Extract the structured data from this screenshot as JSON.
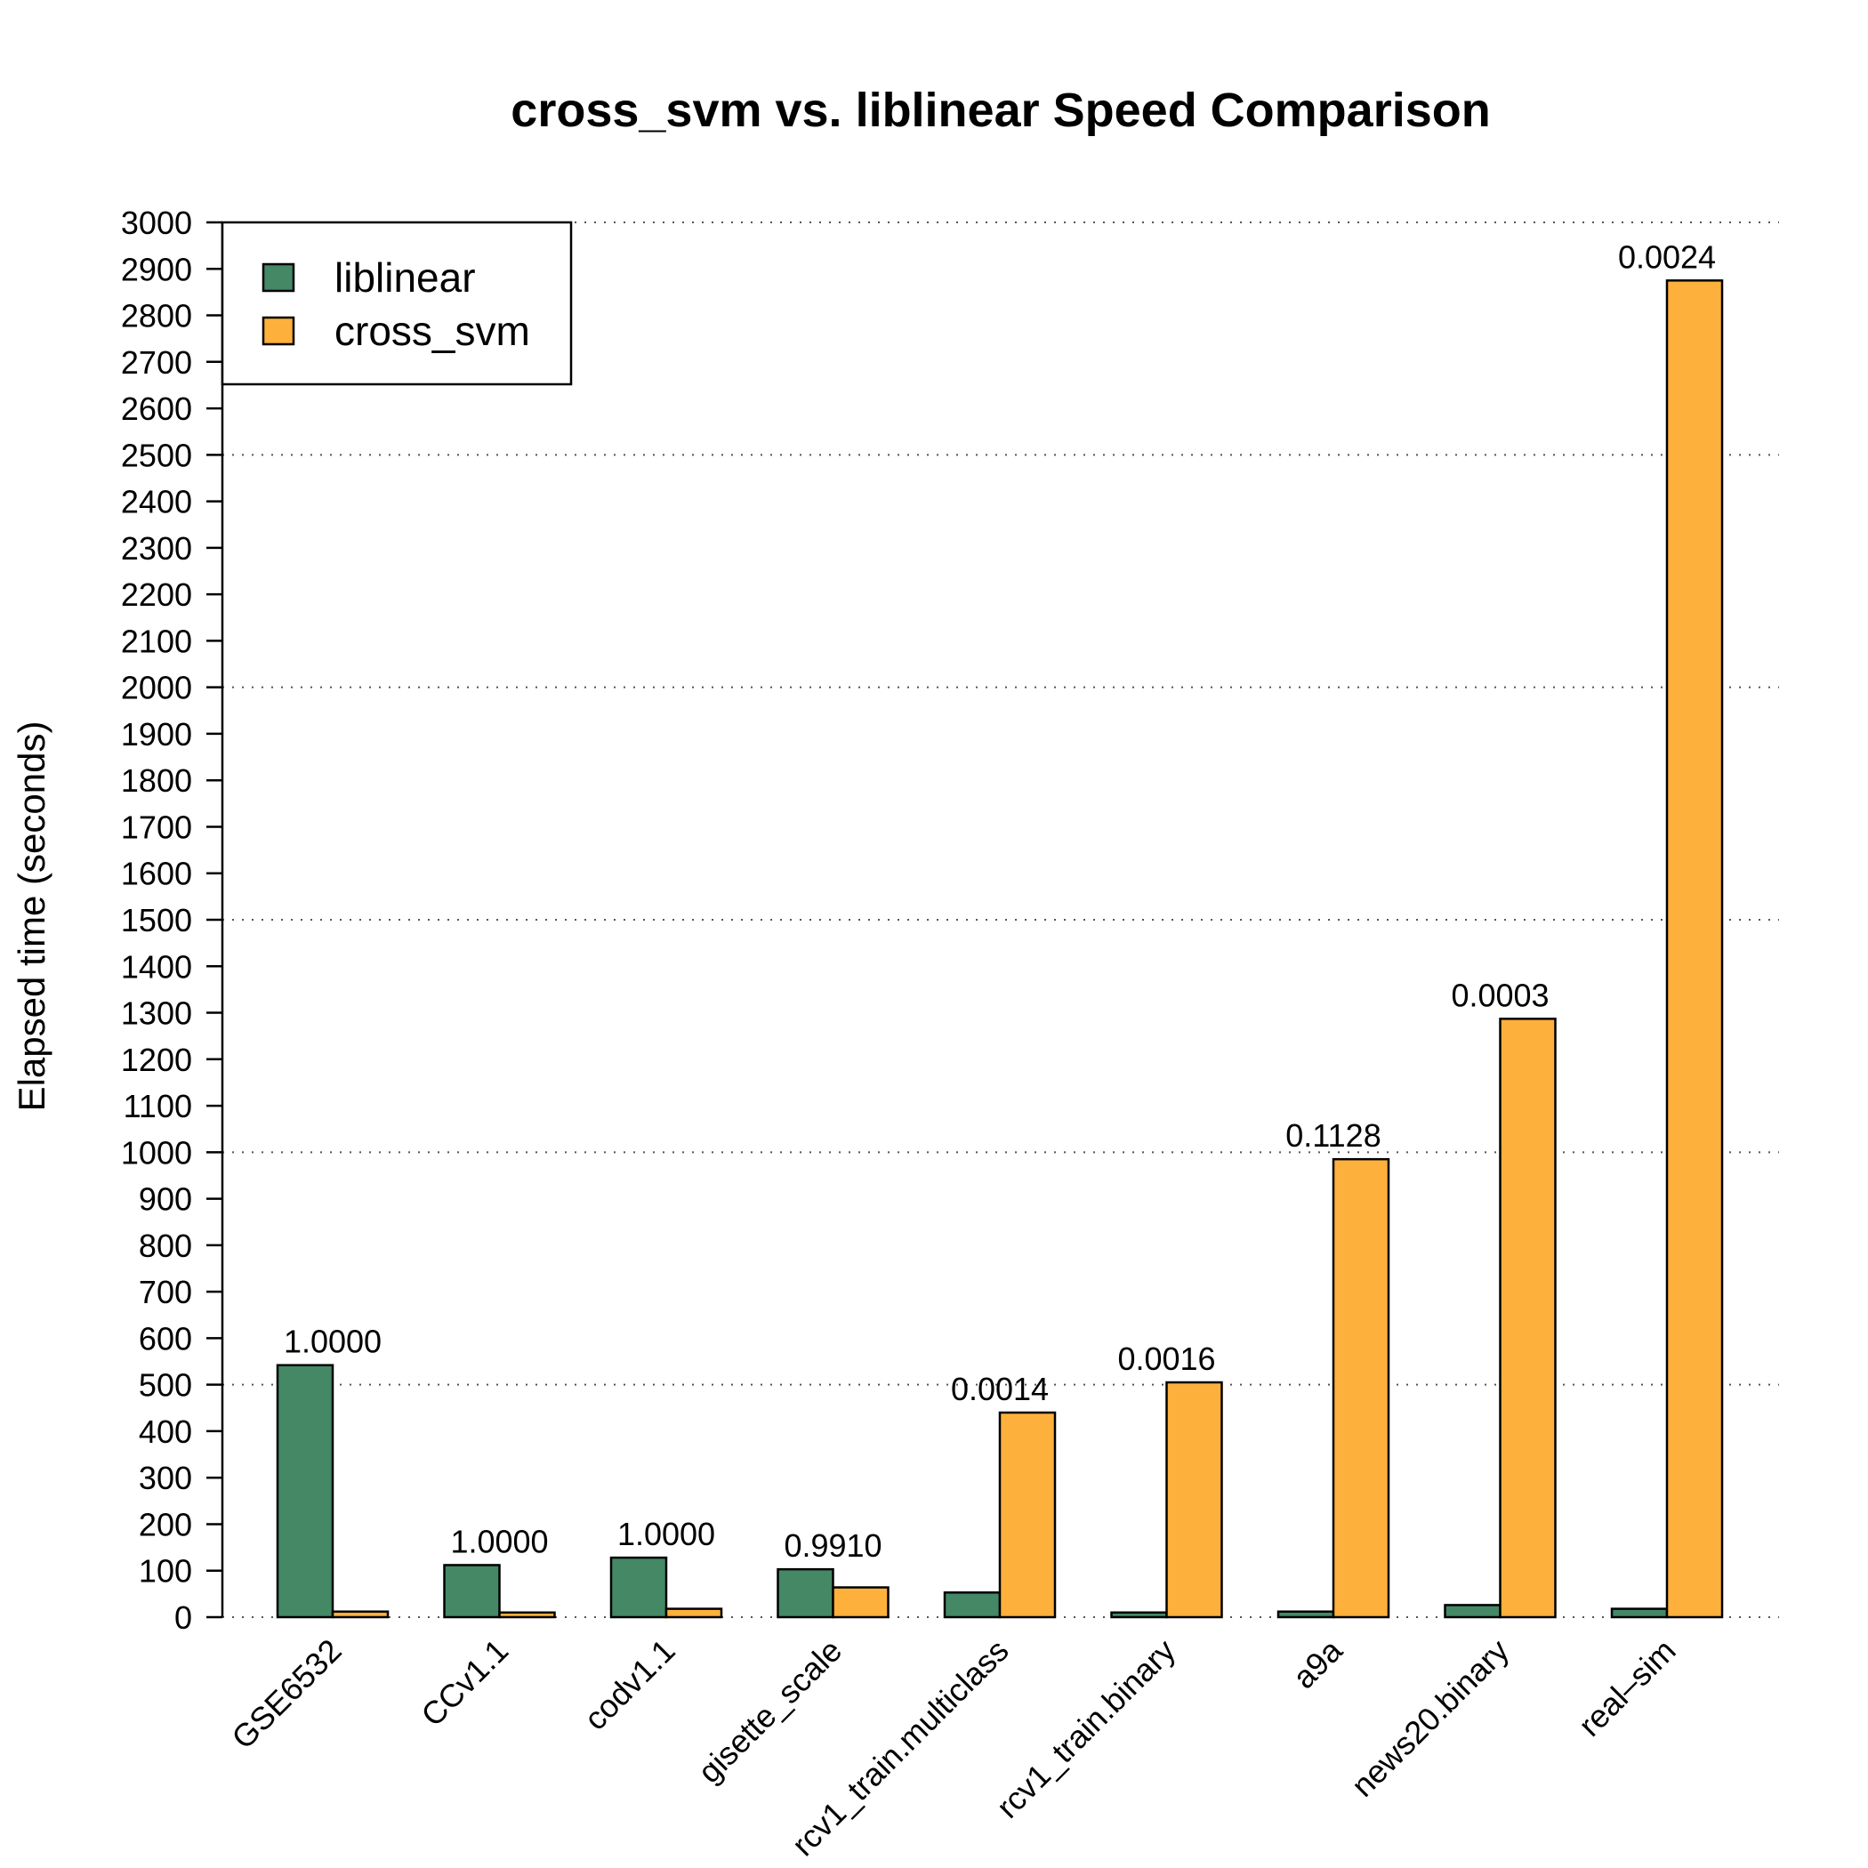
{
  "chart_data": {
    "type": "bar",
    "title": "cross_svm vs. liblinear Speed Comparison",
    "xlabel": "",
    "ylabel": "Elapsed time (seconds)",
    "ylim": [
      0,
      3000
    ],
    "y_ticks": [
      0,
      100,
      200,
      300,
      400,
      500,
      600,
      700,
      800,
      900,
      1000,
      1100,
      1200,
      1300,
      1400,
      1500,
      1600,
      1700,
      1800,
      1900,
      2000,
      2100,
      2200,
      2300,
      2400,
      2500,
      2600,
      2700,
      2800,
      2900,
      3000
    ],
    "gridlines": [
      0,
      500,
      1000,
      1500,
      2000,
      2500,
      3000
    ],
    "grid_style": "dotted",
    "legend_position": "top-left",
    "categories": [
      "GSE6532",
      "CCv1.1",
      "codv1.1",
      "gisette_scale",
      "rcv1_train.multiclass",
      "rcv1_train.binary",
      "a9a",
      "news20.binary",
      "real–sim"
    ],
    "series": [
      {
        "name": "liblinear",
        "color": "#448866",
        "values": [
          542,
          112,
          128,
          103,
          53,
          10,
          12,
          26,
          18
        ]
      },
      {
        "name": "cross_svm",
        "color": "#FDB03C",
        "values": [
          12,
          10,
          18,
          64,
          440,
          505,
          985,
          1287,
          2875
        ]
      }
    ],
    "bar_labels": [
      "1.0000",
      "1.0000",
      "1.0000",
      "0.9910",
      "0.0014",
      "0.0016",
      "0.1128",
      "0.0003",
      "0.0024"
    ]
  }
}
